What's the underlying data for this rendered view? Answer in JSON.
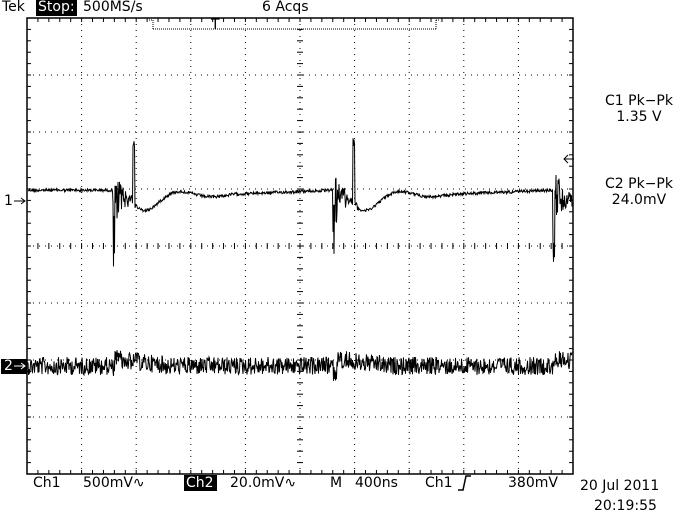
{
  "header": {
    "brand": "Tek",
    "state": "Stop:",
    "sample_rate": "500MS/s",
    "acquisitions": "6 Acqs",
    "trigger_position": "T"
  },
  "measurements": [
    {
      "label": "C1 Pk−Pk",
      "value": "1.35 V"
    },
    {
      "label": "C2 Pk−Pk",
      "value": "24.0mV"
    }
  ],
  "channel_markers": [
    "1",
    "2"
  ],
  "footer": {
    "ch1_label": "Ch1",
    "ch1_scale": "500mV∿",
    "ch2_label": "Ch2",
    "ch2_scale": "20.0mV∿",
    "timebase_label": "M",
    "timebase": "400ns",
    "trigger_source": "Ch1",
    "trigger_level": "380mV",
    "date": "20 Jul 2011",
    "time": "20:19:55"
  }
}
